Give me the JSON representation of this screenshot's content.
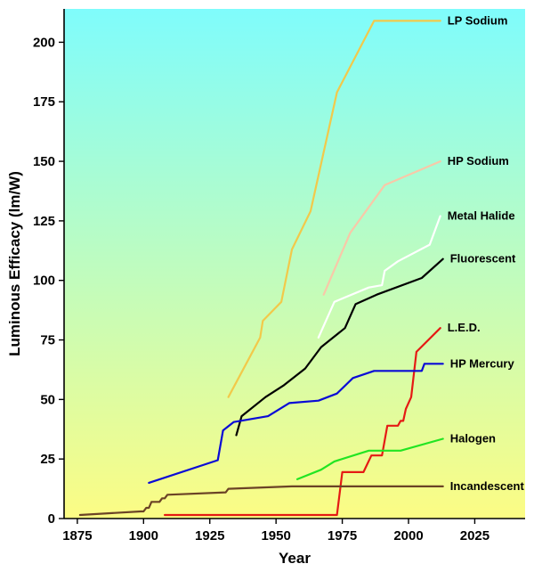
{
  "chart_data": {
    "type": "line",
    "title": "",
    "xlabel": "Year",
    "ylabel": "Luminous Efficacy (lm/W)",
    "xlim": [
      1870,
      2044
    ],
    "ylim": [
      0,
      214
    ],
    "xticks": [
      "1875",
      "1900",
      "1925",
      "1950",
      "1975",
      "2000",
      "2025"
    ],
    "yticks": [
      "0",
      "25",
      "50",
      "75",
      "100",
      "125",
      "150",
      "175",
      "200"
    ],
    "grid": false,
    "background": {
      "top": "#7ffcfc",
      "bottom": "#fcfc84"
    },
    "series": [
      {
        "name": "LP Sodium",
        "color": "#f2c94a",
        "points": [
          [
            1932,
            51
          ],
          [
            1944,
            76
          ],
          [
            1945,
            83
          ],
          [
            1952,
            91
          ],
          [
            1956,
            113
          ],
          [
            1963,
            129
          ],
          [
            1973,
            179
          ],
          [
            1987,
            209
          ],
          [
            2012,
            209
          ]
        ]
      },
      {
        "name": "HP Sodium",
        "color": "#f8c8a8",
        "points": [
          [
            1968,
            94
          ],
          [
            1978,
            120
          ],
          [
            1991,
            140
          ],
          [
            2012,
            150
          ]
        ]
      },
      {
        "name": "Metal Halide",
        "color": "#ffffff",
        "points": [
          [
            1966,
            76
          ],
          [
            1972,
            91
          ],
          [
            1985,
            97
          ],
          [
            1990,
            98
          ],
          [
            1991,
            104
          ],
          [
            1996,
            108
          ],
          [
            2008,
            115
          ],
          [
            2012,
            127
          ]
        ]
      },
      {
        "name": "Fluorescent",
        "color": "#000000",
        "points": [
          [
            1935,
            35
          ],
          [
            1937,
            43
          ],
          [
            1946,
            51
          ],
          [
            1953,
            56
          ],
          [
            1961,
            63
          ],
          [
            1967,
            72
          ],
          [
            1976,
            80
          ],
          [
            1980,
            90
          ],
          [
            1988,
            94
          ],
          [
            2005,
            101
          ],
          [
            2013,
            109
          ]
        ]
      },
      {
        "name": "L.E.D.",
        "color": "#e51a14",
        "points": [
          [
            1908,
            1.5
          ],
          [
            1973,
            1.5
          ],
          [
            1975,
            19.5
          ],
          [
            1983,
            19.5
          ],
          [
            1986,
            26.5
          ],
          [
            1990,
            26.5
          ],
          [
            1992,
            39
          ],
          [
            1996,
            39
          ],
          [
            1997,
            41
          ],
          [
            1998,
            41
          ],
          [
            1999,
            46
          ],
          [
            2001,
            51
          ],
          [
            2003,
            70
          ],
          [
            2012,
            80
          ]
        ]
      },
      {
        "name": "HP Mercury",
        "color": "#0a0ad6",
        "points": [
          [
            1902,
            15
          ],
          [
            1928,
            24.5
          ],
          [
            1930,
            37
          ],
          [
            1934,
            40.5
          ],
          [
            1947,
            43
          ],
          [
            1955,
            48.5
          ],
          [
            1966,
            49.5
          ],
          [
            1973,
            52.5
          ],
          [
            1979,
            59
          ],
          [
            1987,
            62
          ],
          [
            2005,
            62
          ],
          [
            2006,
            65
          ],
          [
            2013,
            65
          ]
        ]
      },
      {
        "name": "Halogen",
        "color": "#22e522",
        "points": [
          [
            1958,
            16.5
          ],
          [
            1967,
            20.5
          ],
          [
            1972,
            24
          ],
          [
            1985,
            28.5
          ],
          [
            1997,
            28.5
          ],
          [
            2013,
            33.5
          ]
        ]
      },
      {
        "name": "Incandescent",
        "color": "#6b4326",
        "points": [
          [
            1876,
            1.5
          ],
          [
            1899,
            3
          ],
          [
            1900,
            3
          ],
          [
            1901,
            4.5
          ],
          [
            1902,
            4.5
          ],
          [
            1903,
            7
          ],
          [
            1906,
            7
          ],
          [
            1907,
            8.5
          ],
          [
            1908,
            8.5
          ],
          [
            1909,
            10
          ],
          [
            1931,
            11
          ],
          [
            1932,
            12.5
          ],
          [
            1956,
            13.5
          ],
          [
            2013,
            13.5
          ]
        ]
      }
    ]
  }
}
